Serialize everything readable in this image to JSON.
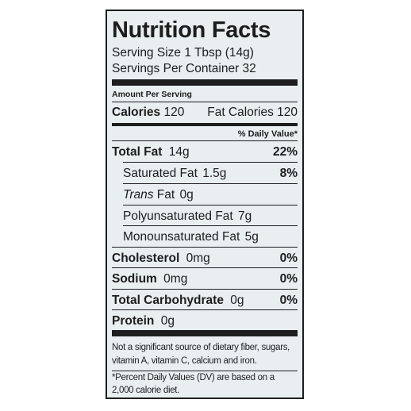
{
  "header": {
    "title": "Nutrition Facts",
    "serving_size": "Serving Size 1 Tbsp (14g)",
    "servings_per_container": "Servings Per Container 32"
  },
  "amount_per_serving": "Amount Per Serving",
  "calories": {
    "label": "Calories",
    "value": "120",
    "fat_calories": "Fat Calories 120"
  },
  "daily_value_header": "% Daily Value*",
  "rows": [
    {
      "label": "Total Fat",
      "amount": "14g",
      "dv": "22%"
    },
    {
      "label": "Saturated Fat",
      "amount": "1.5g",
      "dv": "8%"
    },
    {
      "label_italic": "Trans",
      "label": "Fat",
      "amount": "0g"
    },
    {
      "label": "Polyunsaturated Fat",
      "amount": "7g"
    },
    {
      "label": "Monounsaturated Fat",
      "amount": "5g"
    },
    {
      "label": "Cholesterol",
      "amount": "0mg",
      "dv": "0%"
    },
    {
      "label": "Sodium",
      "amount": "0mg",
      "dv": "0%"
    },
    {
      "label": "Total Carbohydrate",
      "amount": "0g",
      "dv": "0%"
    },
    {
      "label": "Protein",
      "amount": "0g"
    }
  ],
  "footnotes": [
    "Not a significant source of dietary fiber, sugars, vitamin A, vitamin C, calcium and iron.",
    "*Percent Daily Values (DV) are based on a 2,000 calorie diet."
  ]
}
